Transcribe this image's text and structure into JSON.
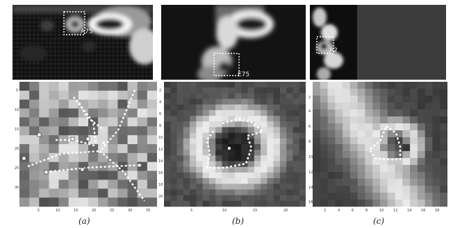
{
  "figure": {
    "panels": [
      {
        "id": "a",
        "caption": "(a)",
        "inset_label": "A75",
        "x_ticks": [
          "5",
          "10",
          "15",
          "20",
          "25",
          "30",
          "35"
        ],
        "y_ticks": [
          "5",
          "10",
          "15",
          "20",
          "25",
          "30"
        ]
      },
      {
        "id": "b",
        "caption": "(b)",
        "inset_label": "E75",
        "x_ticks": [
          "5",
          "10",
          "15",
          "20"
        ],
        "y_ticks": [
          "2",
          "4",
          "6",
          "8",
          "10",
          "12",
          "14",
          "16",
          "18",
          "20"
        ]
      },
      {
        "id": "c",
        "caption": "(c)",
        "inset_label": "A2",
        "x_ticks": [
          "2",
          "4",
          "6",
          "8",
          "10",
          "12",
          "14",
          "16",
          "18"
        ],
        "y_ticks": [
          "2",
          "4",
          "6",
          "8",
          "10",
          "12",
          "14",
          "16"
        ]
      }
    ]
  }
}
